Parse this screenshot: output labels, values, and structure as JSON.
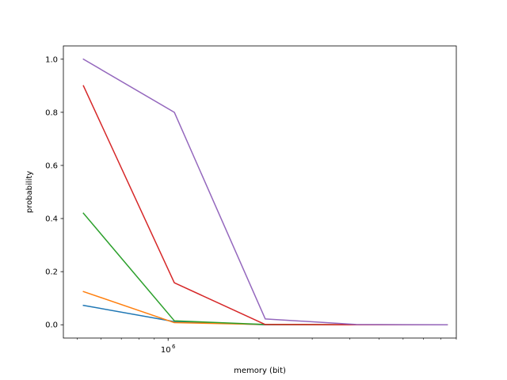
{
  "chart_data": {
    "type": "line",
    "xscale": "log",
    "xlabel": "memory (bit)",
    "ylabel": "probability",
    "xlim": [
      450000,
      9000000
    ],
    "ylim": [
      -0.05,
      1.05
    ],
    "x": [
      524288,
      1048576,
      2097152,
      4194304,
      8388608
    ],
    "x_major_ticks": [
      {
        "value": 1000000,
        "base": "10",
        "exp": "6"
      }
    ],
    "y_ticks": [
      {
        "value": 0.0,
        "label": "0.0"
      },
      {
        "value": 0.2,
        "label": "0.2"
      },
      {
        "value": 0.4,
        "label": "0.4"
      },
      {
        "value": 0.6,
        "label": "0.6"
      },
      {
        "value": 0.8,
        "label": "0.8"
      },
      {
        "value": 1.0,
        "label": "1.0"
      }
    ],
    "grid": false,
    "legend": "none",
    "series": [
      {
        "color": "#1f77b4",
        "values": [
          0.073,
          0.012,
          0.0,
          0.0,
          0.0
        ]
      },
      {
        "color": "#ff7f0e",
        "values": [
          0.125,
          0.008,
          0.001,
          0.0,
          0.0
        ]
      },
      {
        "color": "#2ca02c",
        "values": [
          0.42,
          0.015,
          0.001,
          0.0,
          0.0
        ]
      },
      {
        "color": "#d62728",
        "values": [
          0.9,
          0.158,
          0.001,
          0.0,
          0.0
        ]
      },
      {
        "color": "#9467bd",
        "values": [
          1.0,
          0.8,
          0.022,
          0.001,
          0.0
        ]
      }
    ]
  }
}
